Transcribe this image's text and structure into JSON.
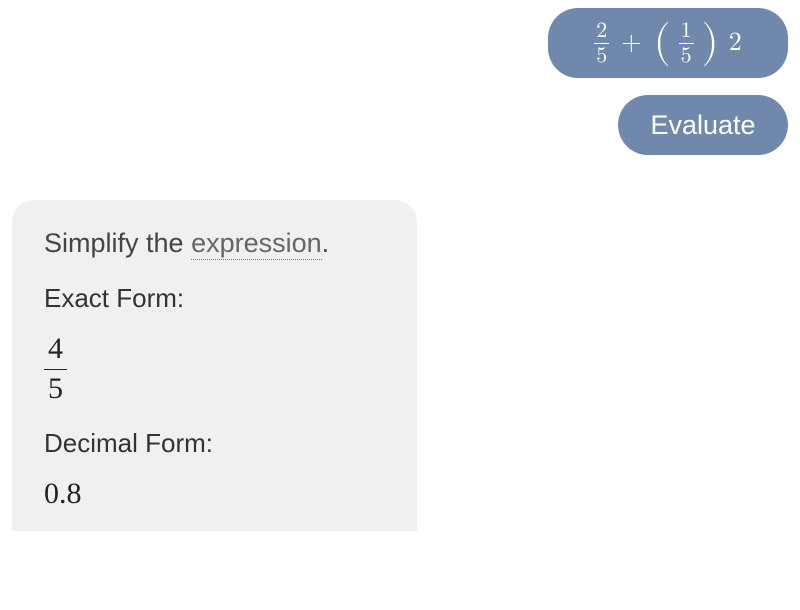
{
  "chat": {
    "input_expression": {
      "frac1": {
        "num": "2",
        "den": "5"
      },
      "operator": "+",
      "frac2": {
        "num": "1",
        "den": "5"
      },
      "trailing": "2"
    },
    "command_label": "Evaluate"
  },
  "response": {
    "instruction_prefix": "Simplify the ",
    "instruction_term": "expression",
    "instruction_suffix": ".",
    "exact_label": "Exact Form:",
    "exact_fraction": {
      "num": "4",
      "den": "5"
    },
    "decimal_label": "Decimal Form:",
    "decimal_value": "0.8"
  },
  "style": {
    "bubble_bg": "#7088ac",
    "bubble_text": "#ffffff",
    "card_bg": "#f0f0ef",
    "text_color": "#444",
    "dotted_color": "#777"
  }
}
